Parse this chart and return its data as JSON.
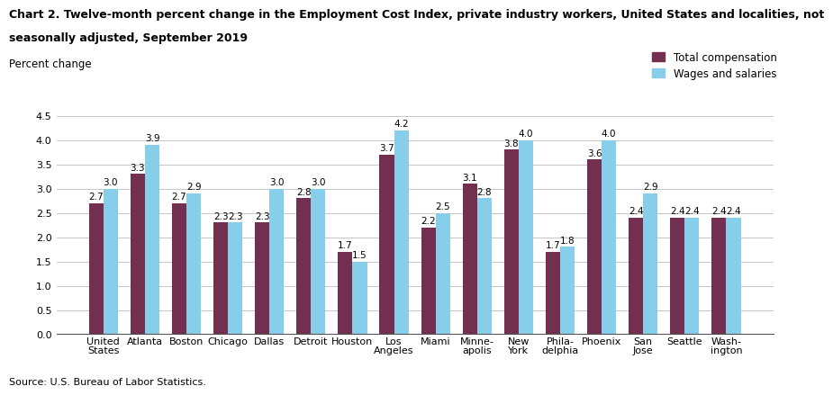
{
  "title_line1": "Chart 2. Twelve-month percent change in the Employment Cost Index, private industry workers, United States and localities, not",
  "title_line2": "seasonally adjusted, September 2019",
  "ylabel": "Percent change",
  "source": "Source: U.S. Bureau of Labor Statistics.",
  "categories": [
    "United\nStates",
    "Atlanta",
    "Boston",
    "Chicago",
    "Dallas",
    "Detroit",
    "Houston",
    "Los\nAngeles",
    "Miami",
    "Minne-\napolis",
    "New\nYork",
    "Phila-\ndelphia",
    "Phoenix",
    "San\nJose",
    "Seattle",
    "Wash-\nington"
  ],
  "total_compensation": [
    2.7,
    3.3,
    2.7,
    2.3,
    2.3,
    2.8,
    1.7,
    3.7,
    2.2,
    3.1,
    3.8,
    1.7,
    3.6,
    2.4,
    2.4,
    2.4
  ],
  "wages_salaries": [
    3.0,
    3.9,
    2.9,
    2.3,
    3.0,
    3.0,
    1.5,
    4.2,
    2.5,
    2.8,
    4.0,
    1.8,
    4.0,
    2.9,
    2.4,
    2.4
  ],
  "color_total": "#722F4F",
  "color_wages": "#87CEEB",
  "ylim": [
    0,
    4.5
  ],
  "yticks": [
    0.0,
    0.5,
    1.0,
    1.5,
    2.0,
    2.5,
    3.0,
    3.5,
    4.0,
    4.5
  ],
  "bar_width": 0.35,
  "legend_labels": [
    "Total compensation",
    "Wages and salaries"
  ],
  "title_fontsize": 9.0,
  "label_fontsize": 8.5,
  "tick_fontsize": 8.0,
  "annot_fontsize": 7.5
}
